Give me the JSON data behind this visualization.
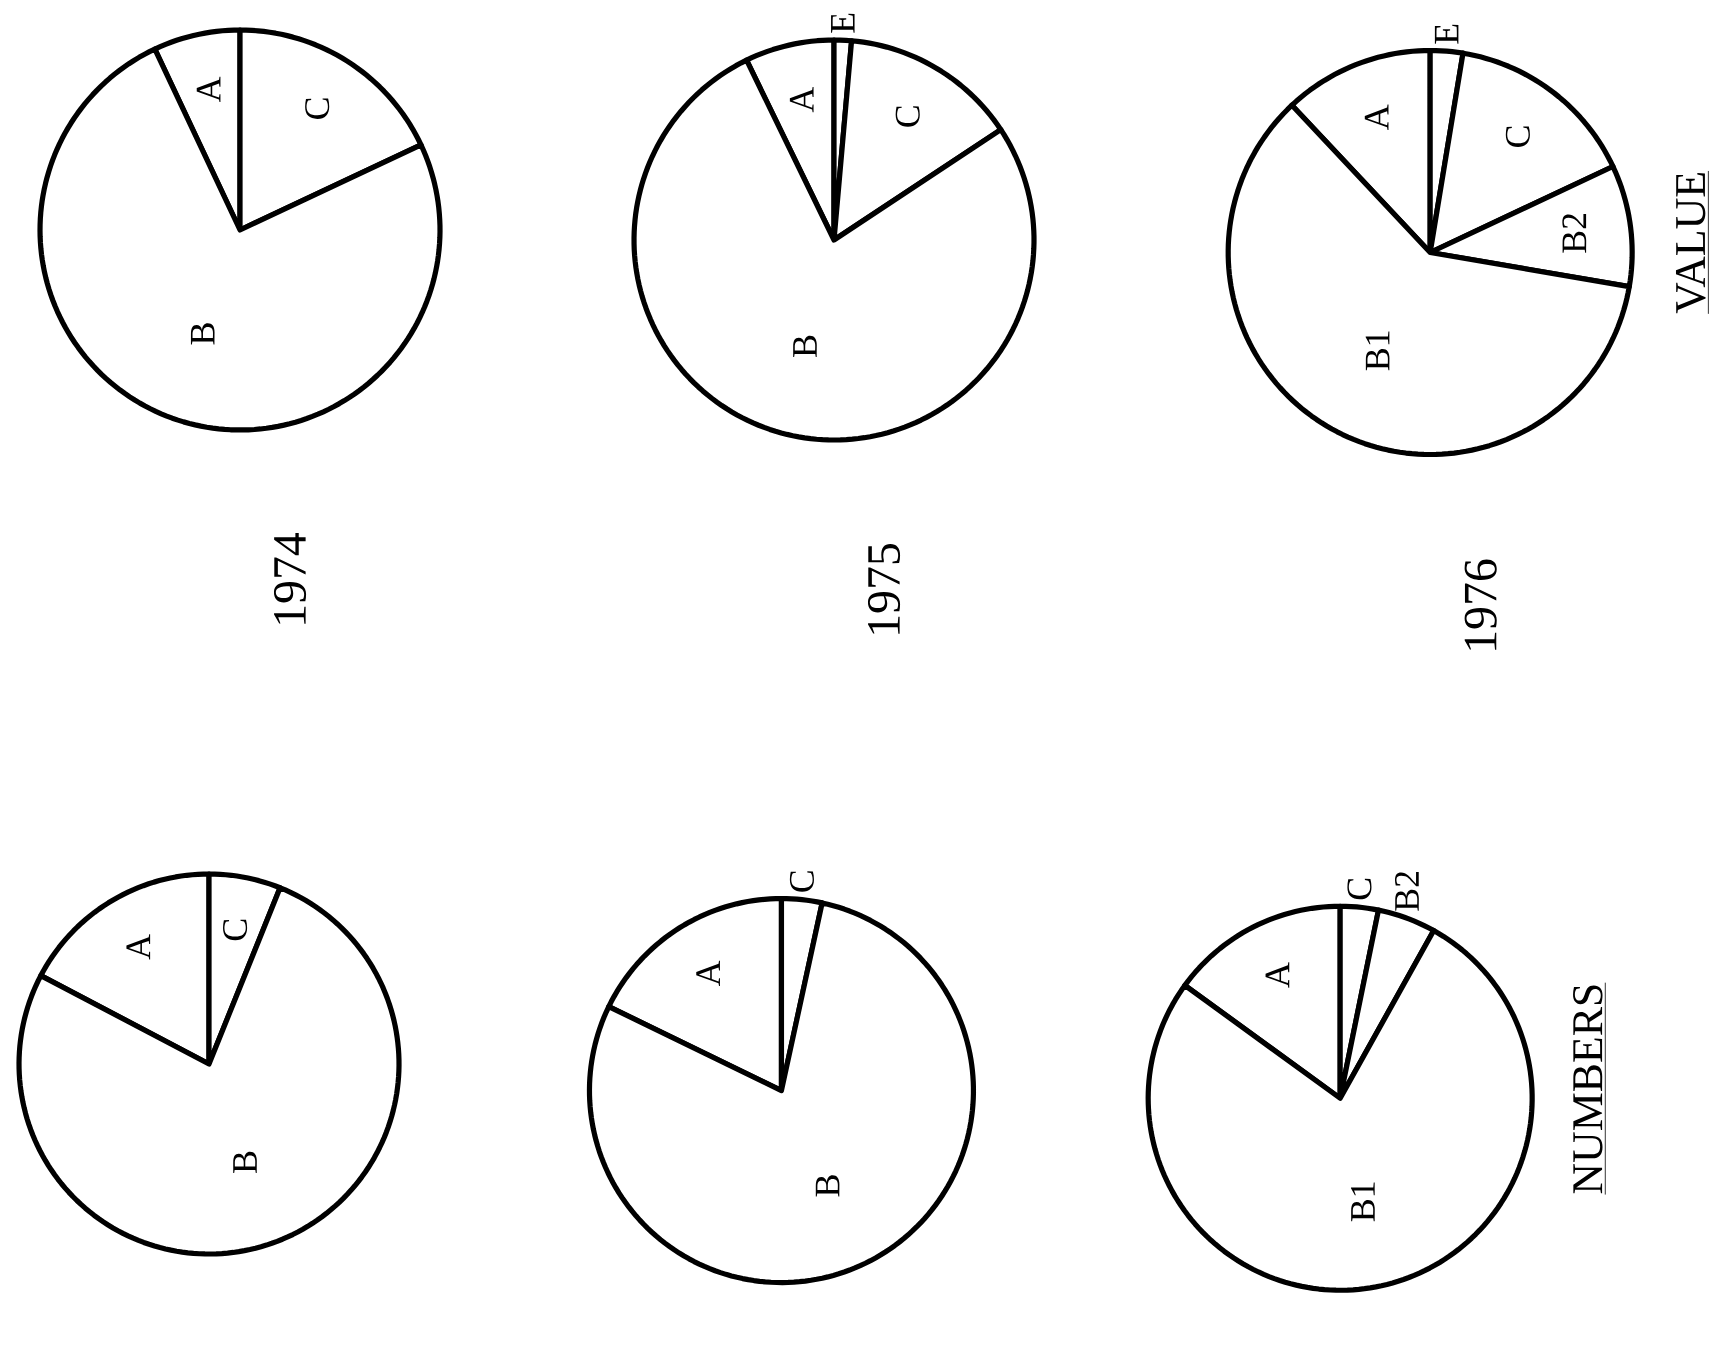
{
  "chart_data": [
    {
      "type": "pie",
      "title": "1974",
      "categories": [
        "A",
        "C",
        "B"
      ],
      "values": [
        7,
        18,
        75
      ],
      "colors": [
        "#ffffff",
        "#ffffff",
        "#ffffff"
      ]
    },
    {
      "type": "pie",
      "title": "1975",
      "categories": [
        "A",
        "E",
        "C",
        "B"
      ],
      "values": [
        7.2,
        1.4,
        14.3,
        77.1
      ],
      "colors": [
        "#ffffff",
        "#ffffff",
        "#ffffff",
        "#ffffff"
      ]
    },
    {
      "type": "pie",
      "title": "1976",
      "xlabel": "VALUE",
      "categories": [
        "A",
        "E",
        "C",
        "B2",
        "B1"
      ],
      "values": [
        12,
        2.6,
        15.4,
        9.7,
        60.3
      ],
      "colors": [
        "#ffffff",
        "#ffffff",
        "#ffffff",
        "#ffffff",
        "#ffffff"
      ]
    },
    {
      "type": "pie",
      "categories": [
        "A",
        "C",
        "B"
      ],
      "values": [
        17.3,
        6.1,
        76.6
      ],
      "colors": [
        "#ffffff",
        "#ffffff",
        "#ffffff"
      ]
    },
    {
      "type": "pie",
      "categories": [
        "A",
        "C",
        "B"
      ],
      "values": [
        17.8,
        3.4,
        78.8
      ],
      "colors": [
        "#ffffff",
        "#ffffff",
        "#ffffff"
      ]
    },
    {
      "type": "pie",
      "xlabel": "NUMBERS",
      "categories": [
        "A",
        "C",
        "B2",
        "B1"
      ],
      "values": [
        15,
        3.2,
        4.9,
        76.9
      ],
      "colors": [
        "#ffffff",
        "#ffffff",
        "#ffffff",
        "#ffffff"
      ]
    }
  ]
}
